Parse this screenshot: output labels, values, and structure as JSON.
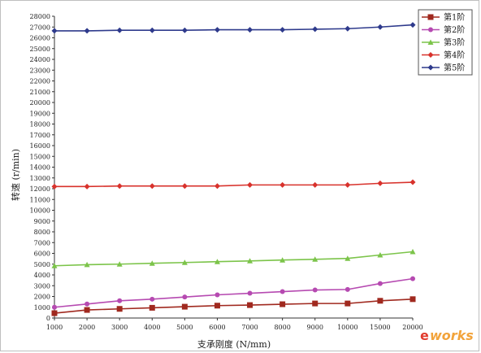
{
  "chart_data": {
    "type": "line",
    "title": "",
    "xlabel": "支承刚度 (N/mm)",
    "ylabel": "转速 (r/min)",
    "categories": [
      "1000",
      "2000",
      "3000",
      "4000",
      "5000",
      "6000",
      "7000",
      "8000",
      "9000",
      "10000",
      "15000",
      "20000"
    ],
    "ylim": [
      0,
      28000
    ],
    "ytick_step": 1000,
    "grid": false,
    "legend_position": "top-right",
    "series": [
      {
        "name": "第1阶",
        "color": "#a0291f",
        "marker": "square",
        "values": [
          450,
          750,
          850,
          950,
          1050,
          1150,
          1200,
          1280,
          1350,
          1350,
          1600,
          1750
        ]
      },
      {
        "name": "第2阶",
        "color": "#b64ab1",
        "marker": "circle",
        "values": [
          1000,
          1300,
          1600,
          1750,
          1950,
          2150,
          2300,
          2450,
          2600,
          2650,
          3200,
          3650
        ]
      },
      {
        "name": "第3阶",
        "color": "#7cc44a",
        "marker": "triangle",
        "values": [
          4850,
          4950,
          5000,
          5080,
          5150,
          5230,
          5300,
          5380,
          5450,
          5530,
          5850,
          6150
        ]
      },
      {
        "name": "第4阶",
        "color": "#d8322c",
        "marker": "diamond",
        "values": [
          12200,
          12200,
          12250,
          12250,
          12250,
          12250,
          12350,
          12350,
          12350,
          12350,
          12500,
          12600
        ]
      },
      {
        "name": "第5阶",
        "color": "#2e3a8c",
        "marker": "diamond",
        "values": [
          26650,
          26650,
          26700,
          26700,
          26700,
          26750,
          26750,
          26750,
          26800,
          26850,
          27000,
          27200
        ]
      }
    ]
  },
  "watermark": {
    "e": "e",
    "works": "works"
  }
}
